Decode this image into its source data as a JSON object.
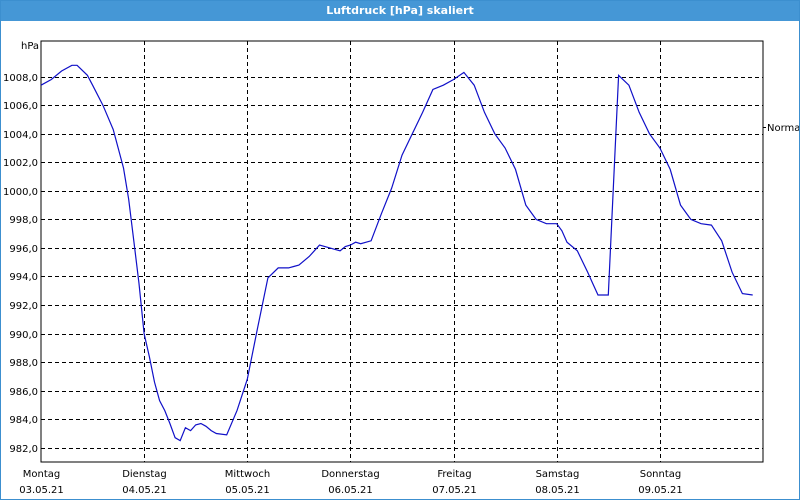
{
  "window": {
    "title": "Luftdruck [hPa] skaliert"
  },
  "colors": {
    "titlebar": "#4597d6",
    "line": "#1010c8",
    "grid": "#000000"
  },
  "chart_data": {
    "type": "line",
    "title": "Luftdruck [hPa] skaliert",
    "ylabel": "hPa",
    "ylim": [
      981,
      1010.5
    ],
    "yticks": [
      982,
      984,
      986,
      988,
      990,
      992,
      994,
      996,
      998,
      1000,
      1002,
      1004,
      1006,
      1008
    ],
    "ytick_labels": [
      "982,0",
      "984,0",
      "986,0",
      "988,0",
      "990,0",
      "992,0",
      "994,0",
      "996,0",
      "998,0",
      "1000,0",
      "1002,0",
      "1004,0",
      "1006,0",
      "1008,0"
    ],
    "xlim": [
      0,
      7
    ],
    "x_categories": [
      {
        "day": "Montag",
        "date": "03.05.21"
      },
      {
        "day": "Dienstag",
        "date": "04.05.21"
      },
      {
        "day": "Mittwoch",
        "date": "05.05.21"
      },
      {
        "day": "Donnerstag",
        "date": "06.05.21"
      },
      {
        "day": "Freitag",
        "date": "07.05.21"
      },
      {
        "day": "Samstag",
        "date": "08.05.21"
      },
      {
        "day": "Sonntag",
        "date": "09.05.21"
      }
    ],
    "grid": true,
    "reference_line": {
      "label": "Normal",
      "value": 1004.5
    },
    "series": [
      {
        "x": [
          0,
          0.1,
          0.2,
          0.3,
          0.35,
          0.45,
          0.5,
          0.6,
          0.7,
          0.8,
          0.85,
          0.9,
          0.95,
          1.0,
          1.05,
          1.1,
          1.15,
          1.2,
          1.25,
          1.3,
          1.35,
          1.4,
          1.45,
          1.5,
          1.55,
          1.6,
          1.65,
          1.7,
          1.8,
          1.9,
          2.0,
          2.1,
          2.2,
          2.3,
          2.4,
          2.45,
          2.5,
          2.6,
          2.7,
          2.8,
          2.9,
          2.95,
          3.0,
          3.05,
          3.1,
          3.2,
          3.3,
          3.4,
          3.5,
          3.6,
          3.7,
          3.8,
          3.9,
          4.0,
          4.1,
          4.2,
          4.3,
          4.4,
          4.5,
          4.6,
          4.7,
          4.8,
          4.9,
          5.0,
          5.05,
          5.1,
          5.2,
          5.3,
          5.35,
          5.4,
          5.5,
          5.6,
          5.7,
          5.8,
          5.9,
          6.0,
          6.1,
          6.2,
          6.3,
          6.4,
          6.5,
          6.6,
          6.7,
          6.8,
          6.9
        ],
        "y": [
          1007.4,
          1007.8,
          1008.4,
          1008.8,
          1008.8,
          1008.1,
          1007.4,
          1006.0,
          1004.3,
          1001.6,
          999.4,
          996.5,
          993.5,
          990.0,
          988.4,
          986.6,
          985.3,
          984.6,
          983.7,
          982.7,
          982.5,
          983.4,
          983.2,
          983.6,
          983.7,
          983.5,
          983.2,
          983.0,
          982.9,
          984.6,
          986.8,
          990.4,
          993.9,
          994.6,
          994.6,
          994.7,
          994.8,
          995.4,
          996.2,
          996.0,
          995.8,
          996.1,
          996.2,
          996.4,
          996.3,
          996.5,
          998.4,
          1000.2,
          1002.5,
          1004.0,
          1005.5,
          1007.1,
          1007.4,
          1007.8,
          1008.3,
          1007.4,
          1005.5,
          1004.0,
          1003.0,
          1001.5,
          999.0,
          998.0,
          997.7,
          997.7,
          997.2,
          996.4,
          995.8,
          994.3,
          993.5,
          992.7,
          992.7,
          1008.1,
          1007.4,
          1005.5,
          1004.0,
          1003.0,
          1001.5,
          999.0,
          998.0,
          997.7,
          997.6,
          996.5,
          994.3,
          992.8,
          992.7
        ]
      }
    ]
  }
}
